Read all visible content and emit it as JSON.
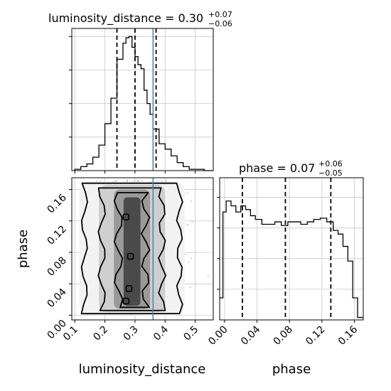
{
  "chart_data": [
    {
      "type": "histogram",
      "panel": "luminosity_distance-1d",
      "title_main": "luminosity_distance = 0.30",
      "title_plus": "+0.07",
      "title_minus": "−0.06",
      "xlim": [
        0.09,
        0.56
      ],
      "bins": [
        0.1,
        0.12,
        0.14,
        0.16,
        0.18,
        0.2,
        0.22,
        0.24,
        0.26,
        0.27,
        0.28,
        0.29,
        0.3,
        0.31,
        0.32,
        0.33,
        0.34,
        0.35,
        0.36,
        0.38,
        0.4,
        0.42,
        0.44,
        0.46,
        0.48,
        0.5,
        0.53,
        0.56
      ],
      "counts": [
        0.01,
        0.03,
        0.05,
        0.1,
        0.19,
        0.35,
        0.54,
        0.83,
        0.95,
        0.99,
        1.0,
        0.92,
        0.85,
        0.79,
        0.76,
        0.6,
        0.5,
        0.42,
        0.31,
        0.2,
        0.16,
        0.11,
        0.06,
        0.03,
        0.01,
        0.01,
        0.0
      ],
      "quantiles": [
        0.24,
        0.3,
        0.37
      ],
      "truth": 0.36,
      "grid": true
    },
    {
      "type": "histogram",
      "panel": "phase-1d",
      "title_main": "phase = 0.07",
      "title_plus": "+0.06",
      "title_minus": "−0.05",
      "xlim": [
        -0.006,
        0.171
      ],
      "bins": [
        -0.006,
        -0.002,
        0.002,
        0.008,
        0.014,
        0.02,
        0.026,
        0.032,
        0.038,
        0.046,
        0.054,
        0.062,
        0.07,
        0.078,
        0.086,
        0.094,
        0.102,
        0.11,
        0.118,
        0.126,
        0.134,
        0.14,
        0.146,
        0.152,
        0.158,
        0.164,
        0.171
      ],
      "counts": [
        0.18,
        0.88,
        0.97,
        0.93,
        0.88,
        0.93,
        0.9,
        0.85,
        0.82,
        0.78,
        0.78,
        0.8,
        0.77,
        0.8,
        0.8,
        0.78,
        0.8,
        0.82,
        0.83,
        0.8,
        0.73,
        0.7,
        0.6,
        0.48,
        0.18,
        0.02
      ],
      "quantiles": [
        0.022,
        0.075,
        0.131
      ],
      "grid": true
    },
    {
      "type": "scatter-density",
      "panel": "luminosity_distance-vs-phase",
      "xlabel": "luminosity_distance",
      "ylabel": "phase",
      "xlim": [
        0.09,
        0.56
      ],
      "ylim": [
        -0.006,
        0.175
      ],
      "xticks": [
        "0.1",
        "0.2",
        "0.3",
        "0.4",
        "0.5"
      ],
      "yticks": [
        "0.00",
        "0.04",
        "0.08",
        "0.12",
        "0.16"
      ],
      "xtick_values": [
        0.1,
        0.2,
        0.3,
        0.4,
        0.5
      ],
      "ytick_values": [
        0.0,
        0.04,
        0.08,
        0.12,
        0.16
      ],
      "x_range": [
        0.12,
        0.55
      ],
      "y_range": [
        0.0,
        0.172
      ],
      "center": [
        0.29,
        0.075
      ],
      "truth": 0.36,
      "grid": true
    },
    {
      "type": "axis",
      "panel": "phase-1d-xaxis",
      "xlabel": "phase",
      "xticks": [
        "0.00",
        "0.04",
        "0.08",
        "0.12",
        "0.16"
      ],
      "xtick_values": [
        0.0,
        0.04,
        0.08,
        0.12,
        0.16
      ]
    }
  ],
  "colors": {
    "truth": "#4682b4",
    "hist": "#000000",
    "grid": "#c8c8c8",
    "density_dark": "#4a4a4a",
    "points": "#9a9a9a"
  }
}
